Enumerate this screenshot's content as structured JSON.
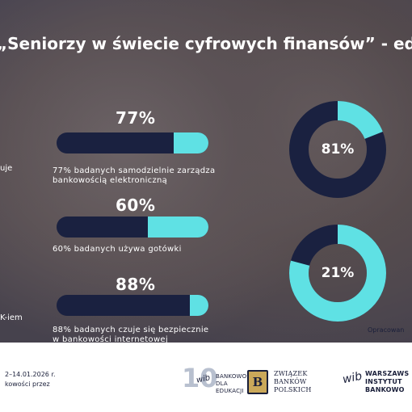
{
  "header": {
    "title": "„Seniorzy w świecie cyfrowych finansów” - edy"
  },
  "left_fragments": {
    "uje": "uje",
    "k_iem": "K-iem"
  },
  "stats": [
    {
      "percent_text": "77%",
      "value": 0.77,
      "caption_line1": "77% badanych samodzielnie zarządza",
      "caption_line2": "bankowością elektroniczną"
    },
    {
      "percent_text": "60%",
      "value": 0.6,
      "caption_line1": "60% badanych używa gotówki",
      "caption_line2": ""
    },
    {
      "percent_text": "88%",
      "value": 0.88,
      "caption_line1": "88% badanych czuje się bezpiecznie",
      "caption_line2": "w bankowości internetowej"
    }
  ],
  "donuts": [
    {
      "label": "81%",
      "value": 0.81
    },
    {
      "label": "21%",
      "value": 0.21
    }
  ],
  "source_text": "Opracowan",
  "footer_left": {
    "line1": "2–14.01.2026 r.",
    "line2": "kowości przez"
  },
  "logos": {
    "ten_years": {
      "line1": "BANKOWOŚCI",
      "line2": "DLA EDUKACJI"
    },
    "zbp": {
      "line1": "ZWIĄZEK",
      "line2": "BANKÓW",
      "line3": "POLSKICH"
    },
    "wib": {
      "line1": "WARSZAWS",
      "line2": "INSTYTUT",
      "line3": "BANKOWO"
    }
  },
  "colors": {
    "dark": "#1a2140",
    "accent": "#5fe1e4",
    "donut_ring_base": "#1a2140"
  }
}
